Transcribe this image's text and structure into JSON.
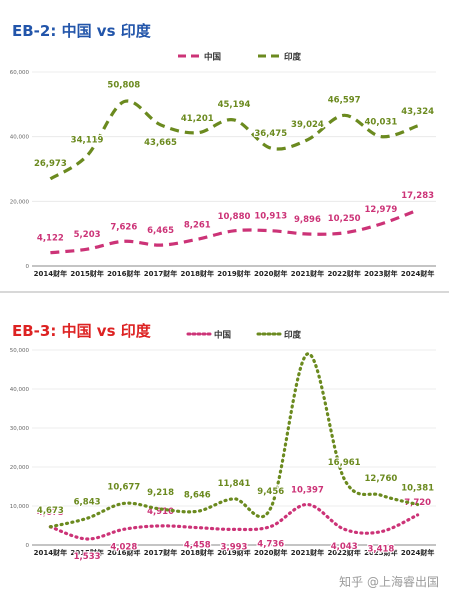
{
  "chart_data": [
    {
      "type": "line",
      "title": "EB-2: 中国 vs 印度",
      "title_color": "#2255aa",
      "categories": [
        "2014财年",
        "2015财年",
        "2016财年",
        "2017财年",
        "2018财年",
        "2019财年",
        "2020财年",
        "2021财年",
        "2022财年",
        "2023财年",
        "2024财年"
      ],
      "ylim": [
        0,
        60000
      ],
      "yticks": [
        0,
        20000,
        40000,
        60000
      ],
      "ytick_labels": [
        "0",
        "20,000",
        "40,000",
        "60,000"
      ],
      "grid": true,
      "legend": "top-center",
      "series": [
        {
          "name": "中国",
          "color": "#cc3377",
          "dash": "dashed",
          "values": [
            4122,
            5203,
            7626,
            6465,
            8261,
            10880,
            10913,
            9896,
            10250,
            12979,
            17283
          ],
          "labels": [
            "4,122",
            "5,203",
            "7,626",
            "6,465",
            "8,261",
            "10,880",
            "10,913",
            "9,896",
            "10,250",
            "12,979",
            "17,283"
          ]
        },
        {
          "name": "印度",
          "color": "#6b8a1f",
          "dash": "dashed",
          "values": [
            26973,
            34119,
            50808,
            43665,
            41201,
            45194,
            36475,
            39024,
            46597,
            40031,
            43324
          ],
          "labels": [
            "26,973",
            "34,119",
            "50,808",
            "43,665",
            "41,201",
            "45,194",
            "36,475",
            "39,024",
            "46,597",
            "40,031",
            "43,324"
          ]
        }
      ]
    },
    {
      "type": "line",
      "title": "EB-3: 中国 vs 印度",
      "title_color": "#dd2222",
      "categories": [
        "2014财年",
        "2015财年",
        "2016财年",
        "2017财年",
        "2018财年",
        "2019财年",
        "2020财年",
        "2021财年",
        "2022财年",
        "2023财年",
        "2024财年"
      ],
      "ylim": [
        0,
        50000
      ],
      "yticks": [
        0,
        10000,
        20000,
        30000,
        40000,
        50000
      ],
      "ytick_labels": [
        "0",
        "10,000",
        "20,000",
        "30,000",
        "40,000",
        "50,000"
      ],
      "grid": true,
      "legend": "top-center",
      "series": [
        {
          "name": "中国",
          "color": "#cc3377",
          "dash": "dotted",
          "values": [
            4673,
            1533,
            4028,
            4910,
            4458,
            3993,
            4736,
            10397,
            4043,
            3418,
            7720
          ],
          "labels": [
            "4,673",
            "1,533",
            "4,028",
            "4,910",
            "4,458",
            "3,993",
            "4,736",
            "10,397",
            "4,043",
            "3,418",
            "7,720"
          ]
        },
        {
          "name": "印度",
          "color": "#6b8a1f",
          "dash": "dotted",
          "values": [
            4673,
            6843,
            10677,
            9218,
            8646,
            11841,
            9456,
            49000,
            16961,
            12760,
            10381
          ],
          "labels": [
            "4,673",
            "6,843",
            "10,677",
            "9,218",
            "8,646",
            "11,841",
            "9,456",
            "",
            "16,961",
            "12,760",
            "10,381"
          ]
        }
      ]
    }
  ],
  "watermark": "知乎 @上海睿出国"
}
